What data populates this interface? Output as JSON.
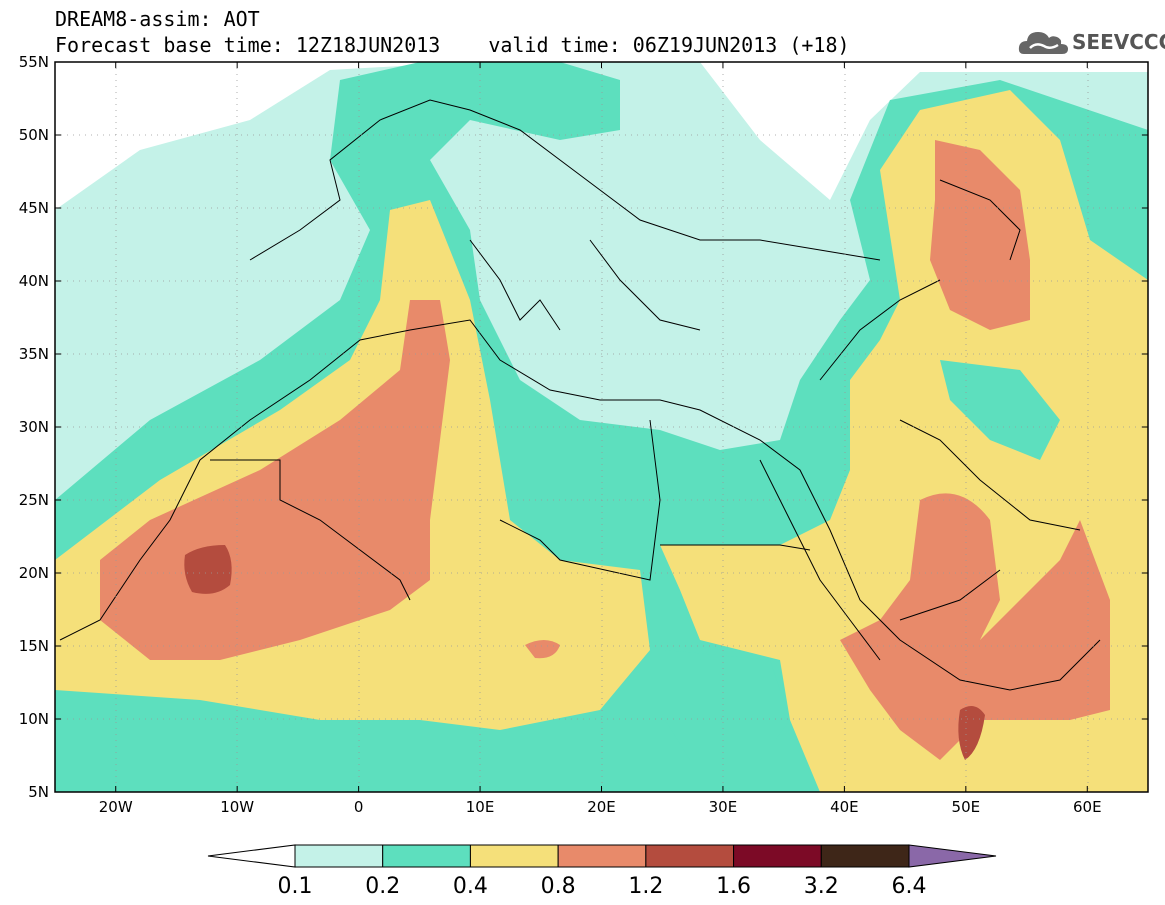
{
  "header": {
    "model_line": "DREAM8-assim: AOT",
    "base_time": "Forecast base time: 12Z18JUN2013",
    "valid_time": "valid time: 06Z19JUN2013 (+18)"
  },
  "brand": {
    "name": "SEEVCCC",
    "icon": "cloud-logo-icon"
  },
  "map": {
    "lon_range": [
      -25,
      65
    ],
    "lat_range": [
      5,
      55
    ],
    "lat_ticks": [
      "55N",
      "50N",
      "45N",
      "40N",
      "35N",
      "30N",
      "25N",
      "20N",
      "15N",
      "10N",
      "5N"
    ],
    "lon_ticks": [
      "20W",
      "10W",
      "0",
      "10E",
      "20E",
      "30E",
      "40E",
      "50E",
      "60E"
    ]
  },
  "colorbar": {
    "colors": [
      "#ffffff",
      "#c4f2e8",
      "#5ddfbe",
      "#f5e07a",
      "#e88a6a",
      "#b44c3e",
      "#7c0a26",
      "#3e2618",
      "#8a68a8"
    ],
    "labels": [
      "0.1",
      "0.2",
      "0.4",
      "0.8",
      "1.2",
      "1.6",
      "3.2",
      "6.4"
    ]
  }
}
